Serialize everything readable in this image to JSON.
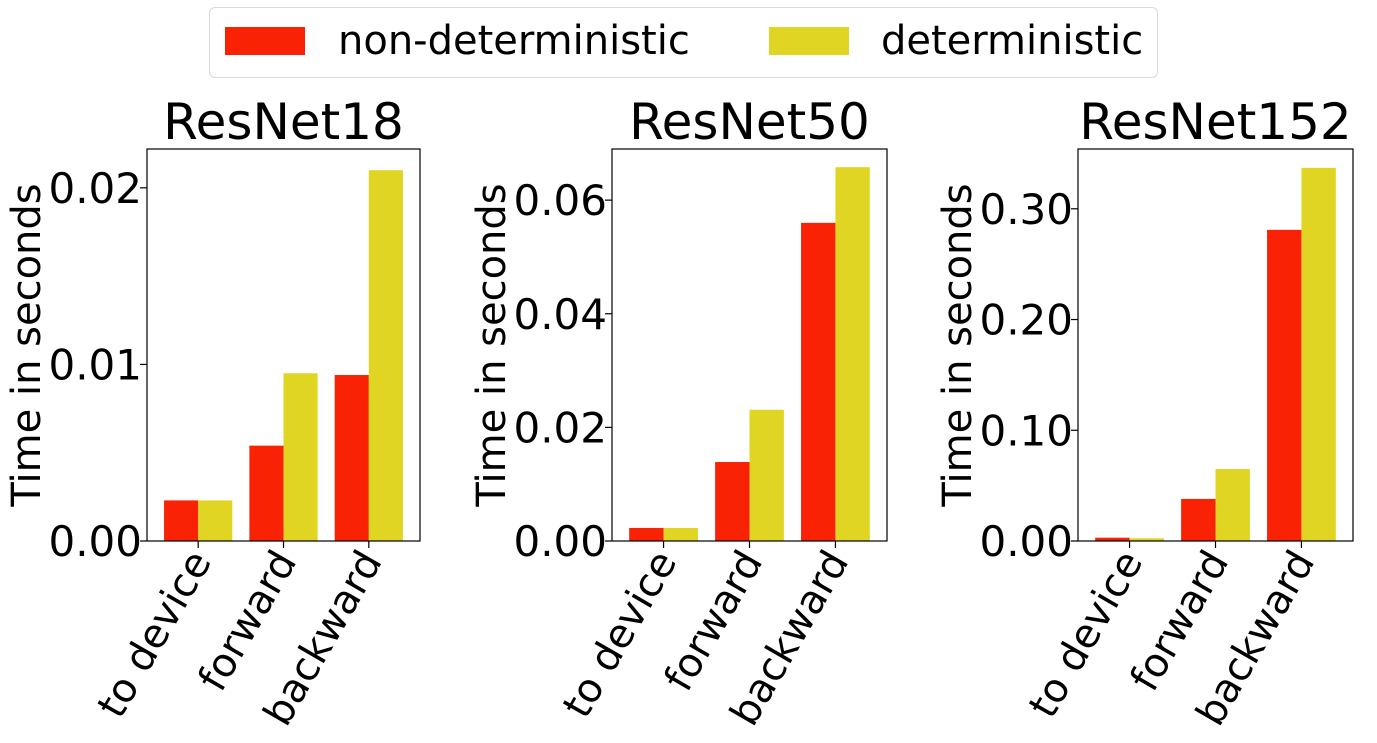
{
  "legend": {
    "items": [
      {
        "label": "non-deterministic",
        "color": "#f92204"
      },
      {
        "label": "deterministic",
        "color": "#e0d523"
      }
    ]
  },
  "chart_data": [
    {
      "type": "bar",
      "title": "ResNet18",
      "ylabel": "Time in seconds",
      "categories": [
        "to device",
        "forward",
        "backward"
      ],
      "series": [
        {
          "name": "non-deterministic",
          "values": [
            0.0023,
            0.0054,
            0.0094
          ]
        },
        {
          "name": "deterministic",
          "values": [
            0.0023,
            0.0095,
            0.021
          ]
        }
      ],
      "ylim": [
        0,
        0.0222
      ],
      "yticks": [
        0,
        0.01,
        0.02
      ],
      "ytick_labels": [
        "0.00",
        "0.01",
        "0.02"
      ],
      "grid": false
    },
    {
      "type": "bar",
      "title": "ResNet50",
      "ylabel": "Time in seconds",
      "categories": [
        "to device",
        "forward",
        "backward"
      ],
      "series": [
        {
          "name": "non-deterministic",
          "values": [
            0.0023,
            0.0139,
            0.056
          ]
        },
        {
          "name": "deterministic",
          "values": [
            0.0023,
            0.0231,
            0.0658
          ]
        }
      ],
      "ylim": [
        0,
        0.069
      ],
      "yticks": [
        0,
        0.02,
        0.04,
        0.06
      ],
      "ytick_labels": [
        "0.00",
        "0.02",
        "0.04",
        "0.06"
      ],
      "grid": false
    },
    {
      "type": "bar",
      "title": "ResNet152",
      "ylabel": "Time in seconds",
      "categories": [
        "to device",
        "forward",
        "backward"
      ],
      "series": [
        {
          "name": "non-deterministic",
          "values": [
            0.003,
            0.038,
            0.281
          ]
        },
        {
          "name": "deterministic",
          "values": [
            0.0025,
            0.065,
            0.337
          ]
        }
      ],
      "ylim": [
        0,
        0.354
      ],
      "yticks": [
        0,
        0.1,
        0.2,
        0.3
      ],
      "ytick_labels": [
        "0.00",
        "0.10",
        "0.20",
        "0.30"
      ],
      "grid": false
    }
  ]
}
